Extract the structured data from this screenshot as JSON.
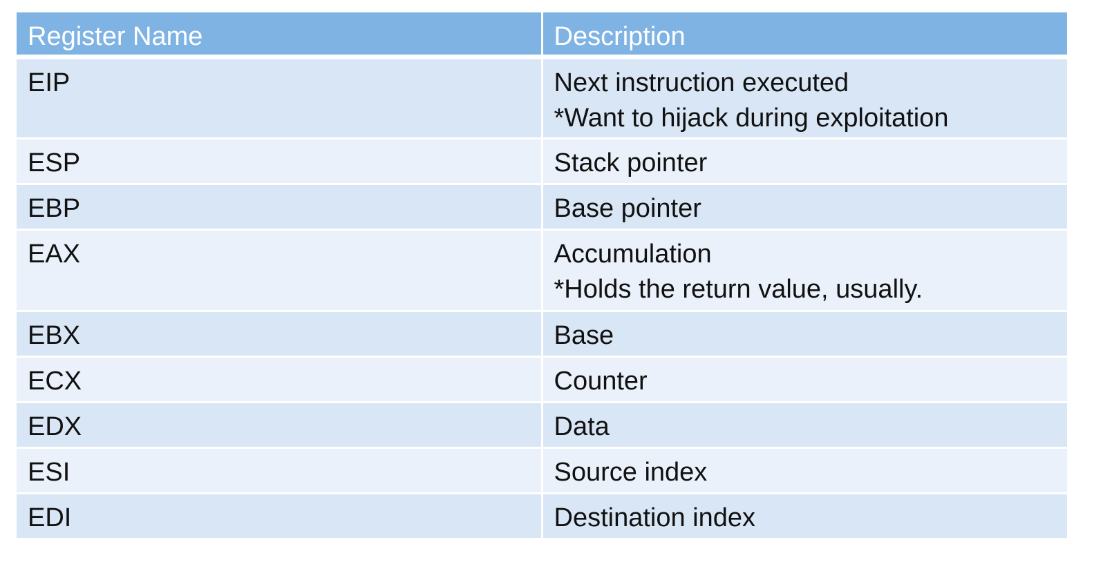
{
  "table": {
    "headers": [
      "Register Name",
      "Description"
    ],
    "rows": [
      {
        "register": "EIP",
        "description": [
          "Next instruction executed",
          "*Want to hijack during exploitation"
        ]
      },
      {
        "register": "ESP",
        "description": [
          "Stack pointer"
        ]
      },
      {
        "register": "EBP",
        "description": [
          "Base pointer"
        ]
      },
      {
        "register": "EAX",
        "description": [
          "Accumulation",
          "*Holds the return value, usually."
        ]
      },
      {
        "register": "EBX",
        "description": [
          "Base"
        ]
      },
      {
        "register": "ECX",
        "description": [
          "Counter"
        ]
      },
      {
        "register": "EDX",
        "description": [
          "Data"
        ]
      },
      {
        "register": "ESI",
        "description": [
          "Source index"
        ]
      },
      {
        "register": "EDI",
        "description": [
          "Destination index"
        ]
      }
    ]
  },
  "colors": {
    "header_bg": "#7fb3e3",
    "row_odd_bg": "#d9e6f5",
    "row_even_bg": "#eaf1fa",
    "border": "#ffffff"
  }
}
